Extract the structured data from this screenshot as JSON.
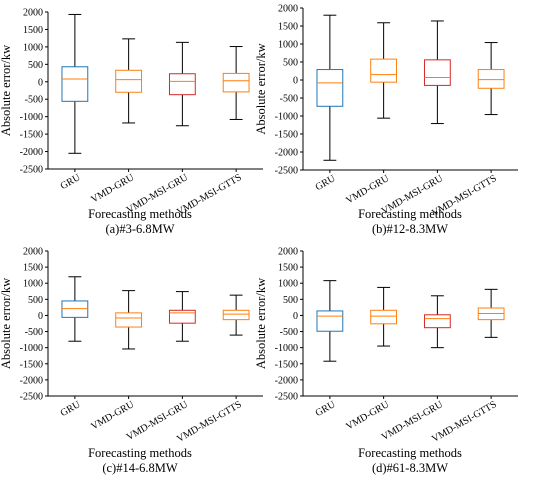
{
  "chart_data": [
    {
      "type": "box",
      "xlabel": "Forecasting methods",
      "caption": "(a)#3-6.8MW",
      "ylabel": "Absolute error/kw",
      "ylim": [
        -2500,
        2000
      ],
      "yticks": [
        -2500,
        -2000,
        -1500,
        -1000,
        -500,
        0,
        500,
        1000,
        1500,
        2000
      ],
      "categories": [
        "GRU",
        "VMD-GRU",
        "VMD-MSI-GRU",
        "VMD-MSI-GTTS"
      ],
      "boxes": [
        {
          "whislo": -2050,
          "q1": -560,
          "med": 80,
          "q3": 430,
          "whishi": 1930
        },
        {
          "whislo": -1180,
          "q1": -300,
          "med": 60,
          "q3": 330,
          "whishi": 1230
        },
        {
          "whislo": -1260,
          "q1": -370,
          "med": 10,
          "q3": 230,
          "whishi": 1130
        },
        {
          "whislo": -1080,
          "q1": -290,
          "med": 30,
          "q3": 240,
          "whishi": 1010
        }
      ]
    },
    {
      "type": "box",
      "xlabel": "Forecasting methods",
      "caption": "(b)#12-8.3MW",
      "ylabel": "Absolute error/kw",
      "ylim": [
        -2500,
        2000
      ],
      "yticks": [
        -2500,
        -2000,
        -1500,
        -1000,
        -500,
        0,
        500,
        1000,
        1500,
        2000
      ],
      "categories": [
        "GRU",
        "VMD-GRU",
        "VMD-MSI-GRU",
        "VMD-MSI-GTTS"
      ],
      "boxes": [
        {
          "whislo": -2230,
          "q1": -730,
          "med": -80,
          "q3": 290,
          "whishi": 1800
        },
        {
          "whislo": -1060,
          "q1": -60,
          "med": 150,
          "q3": 580,
          "whishi": 1590
        },
        {
          "whislo": -1210,
          "q1": -150,
          "med": 70,
          "q3": 560,
          "whishi": 1640
        },
        {
          "whislo": -960,
          "q1": -230,
          "med": 10,
          "q3": 290,
          "whishi": 1040
        }
      ]
    },
    {
      "type": "box",
      "xlabel": "Forecasting methods",
      "caption": "(c)#14-6.8MW",
      "ylabel": "Absolute error/kw",
      "ylim": [
        -2500,
        2000
      ],
      "yticks": [
        -2500,
        -2000,
        -1500,
        -1000,
        -500,
        0,
        500,
        1000,
        1500,
        2000
      ],
      "categories": [
        "GRU",
        "VMD-GRU",
        "VMD-MSI-GRU",
        "VMD-MSI-GTTS"
      ],
      "boxes": [
        {
          "whislo": -800,
          "q1": -60,
          "med": 210,
          "q3": 450,
          "whishi": 1200
        },
        {
          "whislo": -1040,
          "q1": -360,
          "med": -80,
          "q3": 80,
          "whishi": 770
        },
        {
          "whislo": -800,
          "q1": -240,
          "med": 80,
          "q3": 160,
          "whishi": 740
        },
        {
          "whislo": -610,
          "q1": -130,
          "med": 40,
          "q3": 160,
          "whishi": 630
        }
      ]
    },
    {
      "type": "box",
      "xlabel": "Forecasting methods",
      "caption": "(d)#61-8.3MW",
      "ylabel": "Absolute error/kw",
      "ylim": [
        -2500,
        2000
      ],
      "yticks": [
        -2500,
        -2000,
        -1500,
        -1000,
        -500,
        0,
        500,
        1000,
        1500,
        2000
      ],
      "categories": [
        "GRU",
        "VMD-GRU",
        "VMD-MSI-GRU",
        "VMD-MSI-GTTS"
      ],
      "boxes": [
        {
          "whislo": -1420,
          "q1": -490,
          "med": -20,
          "q3": 140,
          "whishi": 1080
        },
        {
          "whislo": -950,
          "q1": -260,
          "med": -20,
          "q3": 160,
          "whishi": 870
        },
        {
          "whislo": -1000,
          "q1": -380,
          "med": -100,
          "q3": 20,
          "whishi": 610
        },
        {
          "whislo": -680,
          "q1": -130,
          "med": 60,
          "q3": 230,
          "whishi": 810
        }
      ]
    }
  ],
  "colors": {
    "box_edges": [
      "#1f77b4",
      "#ff7f0e",
      "#d62728",
      "#ff7f0e"
    ],
    "median": "#ff7f0e",
    "whisker": "#000000"
  }
}
